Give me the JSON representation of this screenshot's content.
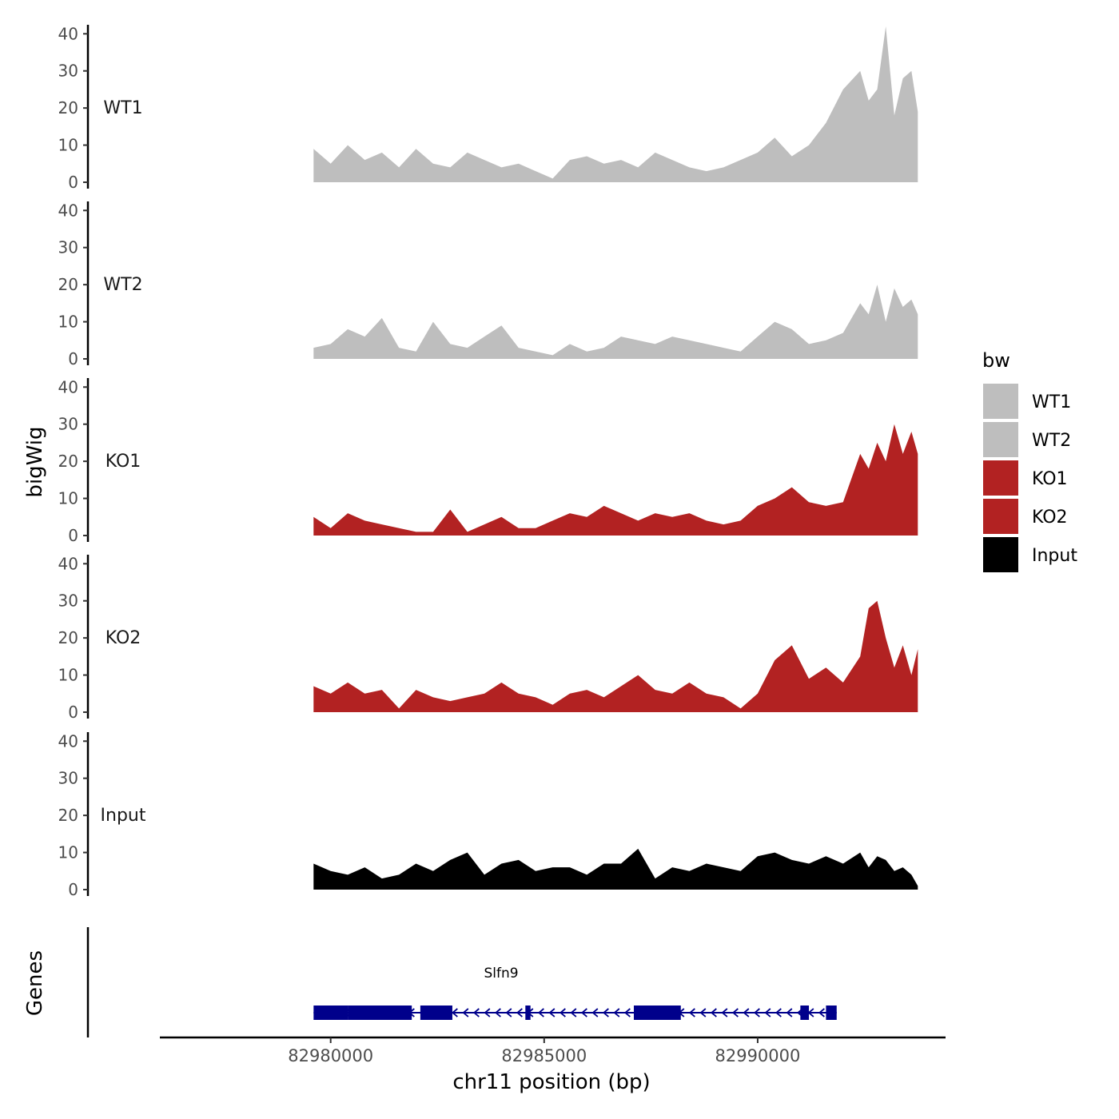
{
  "chart_data": {
    "type": "area",
    "chromosome": "chr11",
    "xlabel": "chr11 position (bp)",
    "ylabel": "bigWig",
    "xlim": [
      82976000,
      82994400
    ],
    "ylim": [
      0,
      42
    ],
    "yticks": [
      0,
      10,
      20,
      30,
      40
    ],
    "xticks": [
      {
        "value": 82980000,
        "label": "82980000"
      },
      {
        "value": 82985000,
        "label": "82985000"
      },
      {
        "value": 82990000,
        "label": "82990000"
      }
    ],
    "legend": {
      "title": "bw",
      "position": "right",
      "items": [
        {
          "label": "WT1",
          "color": "#BEBEBE"
        },
        {
          "label": "WT2",
          "color": "#BEBEBE"
        },
        {
          "label": "KO1",
          "color": "#B22222"
        },
        {
          "label": "KO2",
          "color": "#B22222"
        },
        {
          "label": "Input",
          "color": "#000000"
        }
      ]
    },
    "series": [
      {
        "name": "WT1",
        "color": "#BEBEBE",
        "x": [
          82979600,
          82980000,
          82980400,
          82980800,
          82981200,
          82981600,
          82982000,
          82982400,
          82982800,
          82983200,
          82983600,
          82984000,
          82984400,
          82984800,
          82985200,
          82985600,
          82986000,
          82986400,
          82986800,
          82987200,
          82987600,
          82988000,
          82988400,
          82988800,
          82989200,
          82989600,
          82990000,
          82990400,
          82990800,
          82991200,
          82991600,
          82992000,
          82992400,
          82992600,
          82992800,
          82993000,
          82993200,
          82993400,
          82993600,
          82993750
        ],
        "y": [
          9,
          5,
          10,
          6,
          8,
          4,
          9,
          5,
          4,
          8,
          6,
          4,
          5,
          3,
          1,
          6,
          7,
          5,
          6,
          4,
          8,
          6,
          4,
          3,
          4,
          6,
          8,
          12,
          7,
          10,
          16,
          25,
          30,
          22,
          25,
          42,
          18,
          28,
          30,
          19
        ]
      },
      {
        "name": "WT2",
        "color": "#BEBEBE",
        "x": [
          82979600,
          82980000,
          82980400,
          82980800,
          82981200,
          82981600,
          82982000,
          82982400,
          82982800,
          82983200,
          82983600,
          82984000,
          82984400,
          82984800,
          82985200,
          82985600,
          82986000,
          82986400,
          82986800,
          82987200,
          82987600,
          82988000,
          82988400,
          82988800,
          82989200,
          82989600,
          82990000,
          82990400,
          82990800,
          82991200,
          82991600,
          82992000,
          82992400,
          82992600,
          82992800,
          82993000,
          82993200,
          82993400,
          82993600,
          82993750
        ],
        "y": [
          3,
          4,
          8,
          6,
          11,
          3,
          2,
          10,
          4,
          3,
          6,
          9,
          3,
          2,
          1,
          4,
          2,
          3,
          6,
          5,
          4,
          6,
          5,
          4,
          3,
          2,
          6,
          10,
          8,
          4,
          5,
          7,
          15,
          12,
          20,
          10,
          19,
          14,
          16,
          12
        ]
      },
      {
        "name": "KO1",
        "color": "#B22222",
        "x": [
          82979600,
          82980000,
          82980400,
          82980800,
          82981200,
          82981600,
          82982000,
          82982400,
          82982800,
          82983200,
          82983600,
          82984000,
          82984400,
          82984800,
          82985200,
          82985600,
          82986000,
          82986400,
          82986800,
          82987200,
          82987600,
          82988000,
          82988400,
          82988800,
          82989200,
          82989600,
          82990000,
          82990400,
          82990800,
          82991200,
          82991600,
          82992000,
          82992400,
          82992600,
          82992800,
          82993000,
          82993200,
          82993400,
          82993600,
          82993750
        ],
        "y": [
          5,
          2,
          6,
          4,
          3,
          2,
          1,
          1,
          7,
          1,
          3,
          5,
          2,
          2,
          4,
          6,
          5,
          8,
          6,
          4,
          6,
          5,
          6,
          4,
          3,
          4,
          8,
          10,
          13,
          9,
          8,
          9,
          22,
          18,
          25,
          20,
          30,
          22,
          28,
          22
        ]
      },
      {
        "name": "KO2",
        "color": "#B22222",
        "x": [
          82979600,
          82980000,
          82980400,
          82980800,
          82981200,
          82981600,
          82982000,
          82982400,
          82982800,
          82983200,
          82983600,
          82984000,
          82984400,
          82984800,
          82985200,
          82985600,
          82986000,
          82986400,
          82986800,
          82987200,
          82987600,
          82988000,
          82988400,
          82988800,
          82989200,
          82989600,
          82990000,
          82990400,
          82990800,
          82991200,
          82991600,
          82992000,
          82992400,
          82992600,
          82992800,
          82993000,
          82993200,
          82993400,
          82993600,
          82993750
        ],
        "y": [
          7,
          5,
          8,
          5,
          6,
          1,
          6,
          4,
          3,
          4,
          5,
          8,
          5,
          4,
          2,
          5,
          6,
          4,
          7,
          10,
          6,
          5,
          8,
          5,
          4,
          1,
          5,
          14,
          18,
          9,
          12,
          8,
          15,
          28,
          30,
          20,
          12,
          18,
          10,
          17
        ]
      },
      {
        "name": "Input",
        "color": "#000000",
        "x": [
          82979600,
          82980000,
          82980400,
          82980800,
          82981200,
          82981600,
          82982000,
          82982400,
          82982800,
          82983200,
          82983600,
          82984000,
          82984400,
          82984800,
          82985200,
          82985600,
          82986000,
          82986400,
          82986800,
          82987200,
          82987600,
          82988000,
          82988400,
          82988800,
          82989200,
          82989600,
          82990000,
          82990400,
          82990800,
          82991200,
          82991600,
          82992000,
          82992400,
          82992600,
          82992800,
          82993000,
          82993200,
          82993400,
          82993600,
          82993750
        ],
        "y": [
          7,
          5,
          4,
          6,
          3,
          4,
          7,
          5,
          8,
          10,
          4,
          7,
          8,
          5,
          6,
          6,
          4,
          7,
          7,
          11,
          3,
          6,
          5,
          7,
          6,
          5,
          9,
          10,
          8,
          7,
          9,
          7,
          10,
          6,
          9,
          8,
          5,
          6,
          4,
          1
        ]
      }
    ],
    "gene_track": {
      "label": "Genes",
      "color": "#00008B",
      "genes": [
        {
          "name": "Slfn9",
          "strand": "-",
          "start": 82979600,
          "end": 82991850,
          "exons": [
            [
              82979600,
              82980400
            ],
            [
              82980400,
              82981900
            ],
            [
              82982100,
              82982850
            ],
            [
              82984560,
              82984680
            ],
            [
              82987100,
              82988200
            ],
            [
              82991000,
              82991200
            ],
            [
              82991600,
              82991850
            ]
          ]
        }
      ]
    }
  }
}
